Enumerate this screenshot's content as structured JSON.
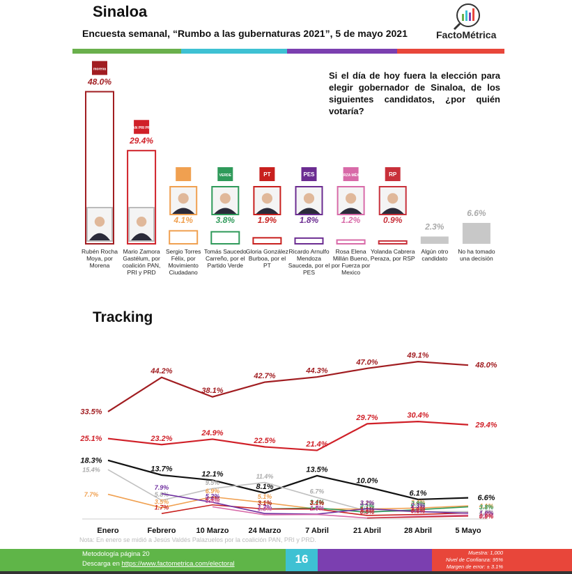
{
  "header": {
    "title": "Sinaloa",
    "subtitle": "Encuesta semanal, “Rumbo a las gubernaturas 2021”, 5 de mayo 2021",
    "brand": "FactoMétrica"
  },
  "chart_data": [
    {
      "type": "bar",
      "annotation": "Si el día de hoy fuera la elección para elegir gobernador de Sinaloa, de los siguientes candidatos, ¿por quién votaría?",
      "categories": [
        "Rubén Rocha Moya, por Morena",
        "Mario Zamora Gastélum, por coalición PAN, PRI y PRD",
        "Sergio Torres Félix, por Movimiento Ciudadano",
        "Tomás Saucedo Carreño, por el Partido Verde",
        "Gloria González Burboa, por el PT",
        "Ricardo Arnulfo Mendoza Sauceda, por el PES",
        "Rosa Elena Millán Bueno, por Fuerza por Mexico",
        "Yolanda Cabrera Peraza, por RSP",
        "Algún otro candidato",
        "No ha tomado una decisión"
      ],
      "logos": [
        "morena",
        "PAN PRI PRD",
        null,
        "VERDE",
        "PT",
        "PES",
        "FUERZA MÉXICO",
        "RP",
        null,
        null
      ],
      "values": [
        48.0,
        29.4,
        4.1,
        3.8,
        1.9,
        1.8,
        1.2,
        0.9,
        2.3,
        6.6
      ],
      "value_labels": [
        "48.0%",
        "29.4%",
        "4.1%",
        "3.8%",
        "1.9%",
        "1.8%",
        "1.2%",
        "0.9%",
        "2.3%",
        "6.6%"
      ],
      "colors": [
        "#a11d21",
        "#d02028",
        "#f0a050",
        "#2f9a5a",
        "#c8201e",
        "#6b2c91",
        "#d86aa8",
        "#c8303a",
        "#c8c8c8",
        "#c8c8c8"
      ],
      "styles": [
        "outline",
        "outline",
        "outline",
        "outline",
        "outline",
        "outline",
        "outline",
        "outline",
        "solid",
        "solid"
      ]
    },
    {
      "type": "line",
      "title": "Tracking",
      "x": [
        "Enero",
        "Febrero",
        "10 Marzo",
        "24 Marzo",
        "7 Abril",
        "21 Abril",
        "28 Abril",
        "5 Mayo"
      ],
      "note": "Nota: En enero se midió a Jesús Valdés Palazuelos por la coalición PAN, PRI y PRD.",
      "series": [
        {
          "name": "Rubén Rocha Moya",
          "color": "#a11d21",
          "values": [
            33.5,
            44.2,
            38.1,
            42.7,
            44.3,
            47.0,
            49.1,
            48.0
          ],
          "value_labels": [
            "33.5%",
            "44.2%",
            "38.1%",
            "42.7%",
            "44.3%",
            "47.0%",
            "49.1%",
            "48.0%"
          ]
        },
        {
          "name": "Mario Zamora Gastélum",
          "color": "#d02028",
          "values": [
            25.1,
            23.2,
            24.9,
            22.5,
            21.4,
            29.7,
            30.4,
            29.4
          ],
          "value_labels": [
            "25.1%",
            "23.2%",
            "24.9%",
            "22.5%",
            "21.4%",
            "29.7%",
            "30.4%",
            "29.4%"
          ]
        },
        {
          "name": "No ha tomado una decisión",
          "color": "#111111",
          "values": [
            18.3,
            13.7,
            12.1,
            8.1,
            13.5,
            10.0,
            6.1,
            6.6
          ],
          "value_labels": [
            "18.3%",
            "13.7%",
            "12.1%",
            "8.1%",
            "13.5%",
            "10.0%",
            "6.1%",
            "6.6%"
          ]
        },
        {
          "name": "Algún otro candidato",
          "color": "#c0c0c0",
          "values": [
            15.4,
            5.8,
            9.5,
            11.4,
            6.7,
            2.5,
            2.3,
            2.3
          ],
          "value_labels": [
            "15.4%",
            "5.8%",
            "9.5%",
            "11.4%",
            "6.7%",
            "2.5%",
            "2.3%",
            "2.3%"
          ]
        },
        {
          "name": "Sergio Torres Félix",
          "color": "#f0a050",
          "values": [
            7.7,
            3.5,
            6.9,
            5.1,
            3.1,
            3.1,
            3.4,
            4.1
          ],
          "value_labels": [
            "7.7%",
            "3.5%",
            "6.9%",
            "5.1%",
            "3.1%",
            "3.1%",
            "3.4%",
            "4.1%"
          ]
        },
        {
          "name": "Tomás Saucedo Carreño",
          "color": "#2f9a5a",
          "values": [
            null,
            null,
            null,
            3.1,
            3.4,
            2.1,
            2.9,
            3.8
          ],
          "value_labels": [
            null,
            null,
            null,
            "3.1%",
            "3.4%",
            "2.1%",
            "2.9%",
            "3.8%"
          ]
        },
        {
          "name": "Gloria González Burboa",
          "color": "#c8201e",
          "values": [
            null,
            1.7,
            4.4,
            3.1,
            3.1,
            1.1,
            1.4,
            1.9
          ],
          "value_labels": [
            null,
            "1.7%",
            "4.4%",
            "3.1%",
            "3.1%",
            "1.1%",
            "1.4%",
            "1.9%"
          ]
        },
        {
          "name": "Ricardo Arnulfo Mendoza Sauceda",
          "color": "#7030a0",
          "values": [
            null,
            7.9,
            5.2,
            1.7,
            1.5,
            3.2,
            2.3,
            1.8
          ],
          "value_labels": [
            null,
            "7.9%",
            "5.2%",
            "1.7%",
            "1.5%",
            "3.2%",
            "2.3%",
            "1.8%"
          ]
        },
        {
          "name": "Rosa Elena Millán Bueno",
          "color": "#d86aa8",
          "values": [
            null,
            null,
            3.8,
            1.3,
            1.4,
            0.3,
            0.8,
            1.2
          ],
          "value_labels": [
            null,
            null,
            "3.8%",
            "1.3%",
            "1.4%",
            "0.3%",
            "0.8%",
            "1.2%"
          ]
        },
        {
          "name": "Yolanda Cabrera Peraza",
          "color": "#c8303a",
          "values": [
            null,
            null,
            null,
            null,
            null,
            0.3,
            0.6,
            0.9
          ],
          "value_labels": [
            null,
            null,
            null,
            null,
            null,
            "0.3%",
            "0.6%",
            "0.9%"
          ]
        }
      ]
    }
  ],
  "footer": {
    "methodology": "Metodología página 20",
    "download_prefix": "Descarga en ",
    "download_link": "https://www.factometrica.com/electoral",
    "page": "16",
    "sample": "Muestra: 1,000",
    "confidence": "Nivel de Confianza: 95%",
    "margin": "Margen de error: ± 3.1%"
  }
}
